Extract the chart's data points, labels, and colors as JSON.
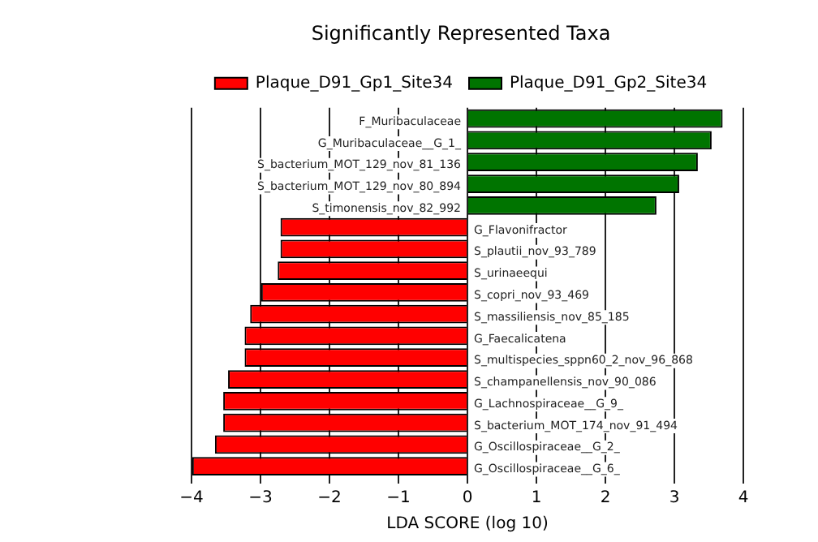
{
  "chart_data": {
    "type": "bar",
    "orientation": "horizontal",
    "title": "Significantly Represented Taxa",
    "xlabel": "LDA SCORE (log 10)",
    "categories": [
      "F_Muribaculaceae",
      "G_Muribaculaceae__G_1_",
      "S_bacterium_MOT_129_nov_81_136",
      "S_bacterium_MOT_129_nov_80_894",
      "S_timonensis_nov_82_992",
      "G_Flavonifractor",
      "S_plautii_nov_93_789",
      "S_urinaeequi",
      "S_copri_nov_93_469",
      "S_massiliensis_nov_85_185",
      "G_Faecalicatena",
      "S_multispecies_sppn60_2_nov_96_868",
      "S_champanellensis_nov_90_086",
      "G_Lachnospiraceae__G_9_",
      "S_bacterium_MOT_174_nov_91_494",
      "G_Oscillospiraceae__G_2_",
      "G_Oscillospiraceae__G_6_"
    ],
    "series": [
      {
        "name": "Plaque_D91_Gp1_Site34",
        "color": "#ff0000",
        "values": [
          null,
          null,
          null,
          null,
          null,
          -2.71,
          -2.71,
          -2.75,
          -2.99,
          -3.15,
          -3.23,
          -3.23,
          -3.47,
          -3.54,
          -3.54,
          -3.66,
          -3.99
        ]
      },
      {
        "name": "Plaque_D91_Gp2_Site34",
        "color": "#007400",
        "values": [
          3.7,
          3.54,
          3.34,
          3.07,
          2.74,
          null,
          null,
          null,
          null,
          null,
          null,
          null,
          null,
          null,
          null,
          null,
          null
        ]
      }
    ],
    "xlim": [
      -4,
      4
    ],
    "xticks": [
      -4,
      -3,
      -2,
      -1,
      0,
      1,
      2,
      3,
      4
    ],
    "grid": "x",
    "legend": "top"
  }
}
